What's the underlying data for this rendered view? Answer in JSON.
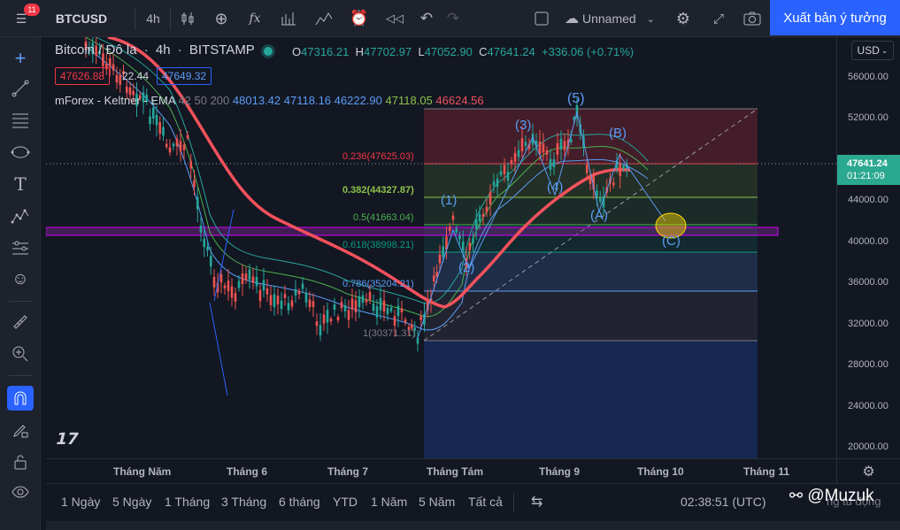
{
  "toolbar": {
    "badge_count": "11",
    "symbol": "BTCUSD",
    "interval": "4h",
    "fx_label": "fx",
    "layout_name": "Unnamed",
    "publish_label": "Xuất bản ý tưởng"
  },
  "legend": {
    "title": "Bitcoin / Đô la",
    "interval": "4h",
    "exchange": "BITSTAMP",
    "o_label": "O",
    "o_value": "47316.21",
    "h_label": "H",
    "h_value": "47702.97",
    "l_label": "L",
    "l_value": "47052.90",
    "c_label": "C",
    "c_value": "47641.24",
    "change": "+336.06 (+0.71%)",
    "bid": "47626.88",
    "spread": "22.44",
    "ask": "47649.32",
    "indicator_name": "mForex - Keltner - EMA",
    "indicator_params": "42 50 200",
    "indicator_values": [
      "48013.42",
      "47118.16",
      "46222.90",
      "47118.05",
      "46624.56"
    ]
  },
  "currency": "USD",
  "current_price": {
    "price": "47641.24",
    "countdown": "01:21:09"
  },
  "price_axis": [
    "56000.00",
    "52000.00",
    "48000.00",
    "44000.00",
    "40000.00",
    "36000.00",
    "32000.00",
    "28000.00",
    "24000.00",
    "20000.00"
  ],
  "time_axis": [
    "Tháng Năm",
    "Tháng 6",
    "Tháng 7",
    "Tháng Tám",
    "Tháng 9",
    "Tháng 10",
    "Tháng 11"
  ],
  "fib_levels": [
    {
      "label": "0.236(47625.03)",
      "color": "#f23645"
    },
    {
      "label": "0.382(44327.87)",
      "color": "#8bc34a"
    },
    {
      "label": "0.5(41663.04)",
      "color": "#4caf50"
    },
    {
      "label": "0.618(38998.21)",
      "color": "#089981"
    },
    {
      "label": "0.786(35204.21)",
      "color": "#5b9cf6"
    },
    {
      "label": "1(30371.31)",
      "color": "#787b86"
    }
  ],
  "wave_labels": [
    "(1)",
    "(2)",
    "(3)",
    "(4)",
    "(5)",
    "(A)",
    "(B)",
    "(C)"
  ],
  "range_buttons": [
    "1 Ngày",
    "5 Ngày",
    "1 Tháng",
    "3 Tháng",
    "6 tháng",
    "YTD",
    "1 Năm",
    "5 Năm",
    "Tất cả"
  ],
  "clock": "02:38:51 (UTC)",
  "watermark": "@Muzuk",
  "corner_partial": "ng tu động",
  "colors": {
    "accent": "#2962ff",
    "up": "#26a69a",
    "down": "#ef5350",
    "ema": "#f4525c",
    "rect": "#9c27b0"
  }
}
